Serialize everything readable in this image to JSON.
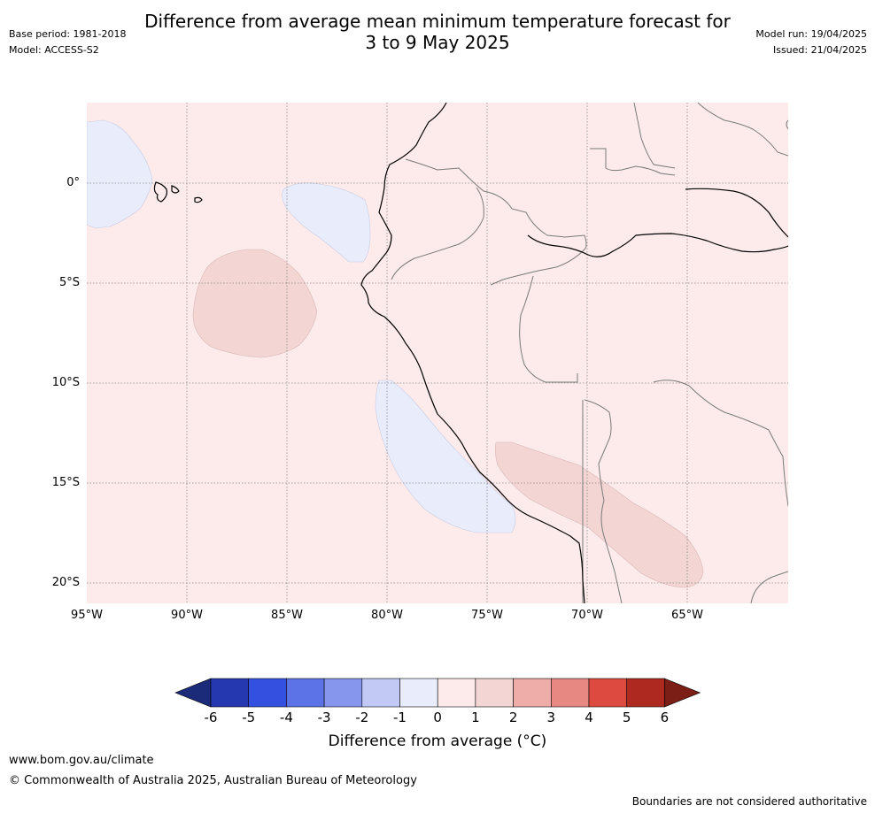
{
  "title_line1": "Difference from average mean minimum temperature forecast for",
  "title_line2": "3 to 9 May 2025",
  "base_period": "Base period: 1981-2018",
  "model": "Model: ACCESS-S2",
  "model_run": "Model run: 19/04/2025",
  "issued": "Issued: 21/04/2025",
  "lat_labels": [
    "0°",
    "5°S",
    "10°S",
    "15°S",
    "20°S"
  ],
  "lon_labels": [
    "95°W",
    "90°W",
    "85°W",
    "80°W",
    "75°W",
    "70°W",
    "65°W"
  ],
  "colorbar": {
    "title": "Difference from average (°C)",
    "ticks": [
      "-6",
      "-5",
      "-4",
      "-3",
      "-2",
      "-1",
      "0",
      "1",
      "2",
      "3",
      "4",
      "5",
      "6"
    ],
    "colors": [
      "#1c2a7a",
      "#2538b0",
      "#3450e0",
      "#5b73e6",
      "#8596ec",
      "#c3c9f5",
      "#e8ecfb",
      "#fcebea",
      "#f3d5d4",
      "#eeada9",
      "#e88882",
      "#dd4a3f",
      "#ae2a21",
      "#7a1e16"
    ]
  },
  "regions": [
    {
      "category": "0 to 1",
      "color": "#fcebea"
    },
    {
      "category": "-1 to 0",
      "color": "#e8ecfb"
    },
    {
      "category": "1 to 2",
      "color": "#f3d5d4"
    }
  ],
  "footer": {
    "url": "www.bom.gov.au/climate",
    "copyright": "© Commonwealth of Australia 2025, Australian Bureau of Meteorology",
    "note": "Boundaries are not considered authoritative"
  }
}
